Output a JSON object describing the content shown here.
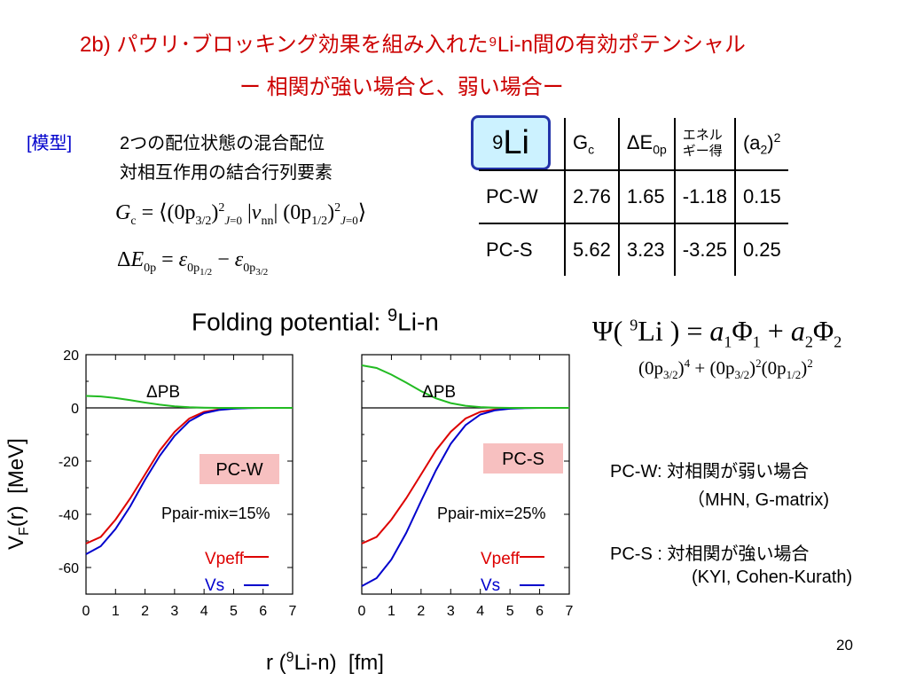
{
  "slide": {
    "title_line1": "2b) パウリ･ブロッキング効果を組み入れた⁹Li-n間の有効ポテンシャル",
    "title_line2": "ー 相関が強い場合と、弱い場合ー",
    "page_number": "20"
  },
  "model": {
    "tag": "[模型]",
    "mixing_line1": "2つの配位状態の混合配位",
    "mixing_line2": "対相互作用の結合行列要素"
  },
  "equations": {
    "gc": "G_c = ⟨(0p3/2)²J=0 | v_nn | (0p1/2)²J=0⟩",
    "de": "ΔE_0p = ε_0p1/2 − ε_0p3/2",
    "psi": "Ψ(⁹Li) = a₁Φ₁ + a₂Φ₂",
    "configs": "(0p3/2)⁴ + (0p3/2)²(0p1/2)²"
  },
  "table": {
    "nucleus": "9Li",
    "headers": [
      "Gc",
      "ΔE0p",
      "エネル ギー得",
      "(a2)2"
    ],
    "rows": [
      {
        "name": "PC-W",
        "values": [
          "2.76",
          "1.65",
          "-1.18",
          "0.15"
        ]
      },
      {
        "name": "PC-S",
        "values": [
          "5.62",
          "3.23",
          "-3.25",
          "0.25"
        ]
      }
    ]
  },
  "notes": {
    "pcw_line1": "PC-W: 対相関が弱い場合",
    "pcw_line2": "（MHN, G-matrix)",
    "pcs_line1": "PC-S : 対相関が強い場合",
    "pcs_line2": "(KYI, Cohen-Kurath)"
  },
  "chart_data": [
    {
      "type": "line",
      "title": "Folding potential: 9Li-n",
      "xlabel": "r (9Li-n) [fm]",
      "ylabel": "VF(r) [MeV]",
      "xlim": [
        0,
        7
      ],
      "ylim": [
        -70,
        20
      ],
      "x_ticks": [
        "0",
        "1",
        "2",
        "3",
        "4",
        "5",
        "6",
        "7"
      ],
      "y_ticks": [
        "20",
        "0",
        "-20",
        "-40",
        "-60"
      ],
      "panel_label": "PC-W",
      "pair_mix": "Ppair-mix=15%",
      "delta_label": "ΔPB",
      "series": [
        {
          "name": "Vpeff",
          "color": "#dd0000",
          "x": [
            0,
            0.5,
            1,
            1.5,
            2,
            2.5,
            3,
            3.5,
            4,
            4.5,
            5,
            5.5,
            6,
            6.5,
            7
          ],
          "y": [
            -51,
            -48.5,
            -42,
            -34,
            -25,
            -16,
            -9,
            -4,
            -1.5,
            -0.6,
            -0.2,
            0,
            0,
            0,
            0
          ]
        },
        {
          "name": "Vs",
          "color": "#0000cc",
          "x": [
            0,
            0.5,
            1,
            1.5,
            2,
            2.5,
            3,
            3.5,
            4,
            4.5,
            5,
            5.5,
            6,
            6.5,
            7
          ],
          "y": [
            -55,
            -52,
            -45.5,
            -37,
            -27,
            -18,
            -10.5,
            -5,
            -2,
            -0.8,
            -0.3,
            -0.1,
            0,
            0,
            0
          ]
        },
        {
          "name": "ΔPB",
          "color": "#22bb22",
          "x": [
            0,
            0.5,
            1,
            1.5,
            2,
            2.5,
            3,
            3.5,
            4,
            4.5,
            5,
            5.5,
            6,
            6.5,
            7
          ],
          "y": [
            4.5,
            4.3,
            3.7,
            2.9,
            2.0,
            1.2,
            0.6,
            0.25,
            0.1,
            0,
            0,
            0,
            0,
            0,
            0
          ]
        }
      ]
    },
    {
      "type": "line",
      "xlim": [
        0,
        7
      ],
      "ylim": [
        -70,
        20
      ],
      "x_ticks": [
        "0",
        "1",
        "2",
        "3",
        "4",
        "5",
        "6",
        "7"
      ],
      "panel_label": "PC-S",
      "pair_mix": "Ppair-mix=25%",
      "delta_label": "ΔPB",
      "series": [
        {
          "name": "Vpeff",
          "color": "#dd0000",
          "x": [
            0,
            0.5,
            1,
            1.5,
            2,
            2.5,
            3,
            3.5,
            4,
            4.5,
            5,
            5.5,
            6,
            6.5,
            7
          ],
          "y": [
            -51,
            -48.5,
            -42,
            -34,
            -25,
            -16,
            -9,
            -4,
            -1.5,
            -0.6,
            -0.2,
            0,
            0,
            0,
            0
          ]
        },
        {
          "name": "Vs",
          "color": "#0000cc",
          "x": [
            0,
            0.5,
            1,
            1.5,
            2,
            2.5,
            3,
            3.5,
            4,
            4.5,
            5,
            5.5,
            6,
            6.5,
            7
          ],
          "y": [
            -67,
            -64,
            -57,
            -47,
            -35,
            -23.5,
            -13.5,
            -6.5,
            -2.5,
            -0.9,
            -0.3,
            -0.1,
            0,
            0,
            0
          ]
        },
        {
          "name": "ΔPB",
          "color": "#22bb22",
          "x": [
            0,
            0.5,
            1,
            1.5,
            2,
            2.5,
            3,
            3.5,
            4,
            4.5,
            5,
            5.5,
            6,
            6.5,
            7
          ],
          "y": [
            16,
            15,
            12.5,
            9.5,
            6.3,
            3.6,
            1.8,
            0.8,
            0.3,
            0.1,
            0,
            0,
            0,
            0,
            0
          ]
        }
      ]
    }
  ]
}
